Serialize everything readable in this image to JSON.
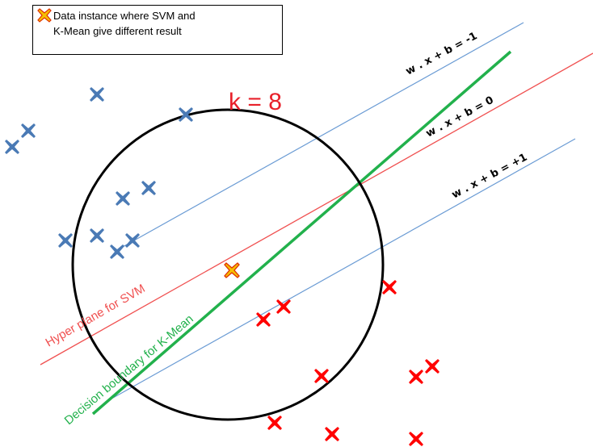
{
  "legend": {
    "line1": "Data instance where SVM and",
    "line2": "K-Mean give different result",
    "marker_color": "#f5c000",
    "marker_outline": "#e03000"
  },
  "title_k": "k = 8",
  "line_labels": {
    "minus_one": "w . x + b = -1",
    "zero": "w . x + b = 0",
    "plus_one": "w . x + b = +1",
    "svm": "Hyper plane for SVM",
    "kmean": "Decision boundary for K-Mean"
  },
  "colors": {
    "blue_points": "#4a7ab5",
    "red_points": "#ff0000",
    "svm_line": "#f05050",
    "margin_lines": "#6a9bd4",
    "kmean_line": "#22b14c",
    "k_label": "#e8202a",
    "circle": "#000000"
  },
  "icons": {
    "point": "x-mark-icon"
  }
}
